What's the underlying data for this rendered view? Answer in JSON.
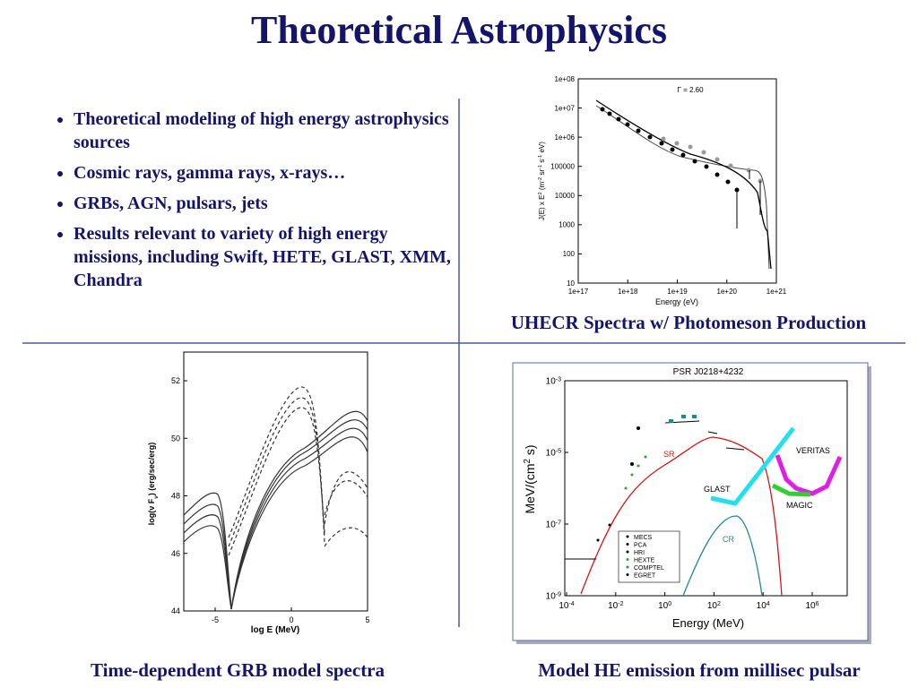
{
  "title": "Theoretical Astrophysics",
  "bullets": [
    "Theoretical modeling of high energy astrophysics sources",
    "Cosmic rays, gamma rays, x-rays…",
    "GRBs, AGN, pulsars, jets",
    "Results relevant to variety of high energy missions, including Swift, HETE, GLAST, XMM, Chandra"
  ],
  "figures": [
    {
      "caption": "UHECR Spectra w/ Photomeson Production",
      "yticks": [
        "1e+08",
        "1e+07",
        "1e+06",
        "100000",
        "10000",
        "1000",
        "100",
        "10"
      ],
      "xticks": [
        "1e+17",
        "1e+18",
        "1e+19",
        "1e+20",
        "1e+21"
      ],
      "xlabel": "Energy (eV)",
      "ylabel": [
        "J(E) x E",
        {
          "sup": "2"
        },
        " (m",
        {
          "sup": "-2"
        },
        " sr",
        {
          "sup": "-1"
        },
        " s",
        {
          "sup": "-1"
        },
        " eV)"
      ],
      "annotation": "Γ = 2.60"
    },
    {
      "caption": "Time-dependent GRB model spectra",
      "yticks": [
        "52",
        "50",
        "48",
        "46",
        "44"
      ],
      "xticks": [
        "-5",
        "0",
        "5"
      ],
      "xlabel": "log E (MeV)",
      "ylabel": [
        "log(ν F",
        {
          "sub": "ν"
        },
        ")  (erg/sec/erg)"
      ]
    },
    {
      "caption": "Model HE emission from millisec pulsar",
      "title": "PSR J0218+4232",
      "yticks": [
        {
          "b": "10",
          "e": "-3"
        },
        {
          "b": "10",
          "e": "-5"
        },
        {
          "b": "10",
          "e": "-7"
        },
        {
          "b": "10",
          "e": "-9"
        }
      ],
      "xticks": [
        {
          "b": "10",
          "e": "-4"
        },
        {
          "b": "10",
          "e": "-2"
        },
        {
          "b": "10",
          "e": "0"
        },
        {
          "b": "10",
          "e": "2"
        },
        {
          "b": "10",
          "e": "4"
        },
        {
          "b": "10",
          "e": "6"
        }
      ],
      "xlabel": "Energy (MeV)",
      "ylabel": [
        "MeV/(cm",
        {
          "sup": "2"
        },
        " s)"
      ],
      "labels": [
        "SR",
        "GLAST",
        "CR",
        "VERITAS",
        "MAGIC"
      ],
      "legend": [
        "MECS",
        "PCA",
        "HRI",
        "HEXTE",
        "COMPTEL",
        "EGRET"
      ]
    }
  ]
}
